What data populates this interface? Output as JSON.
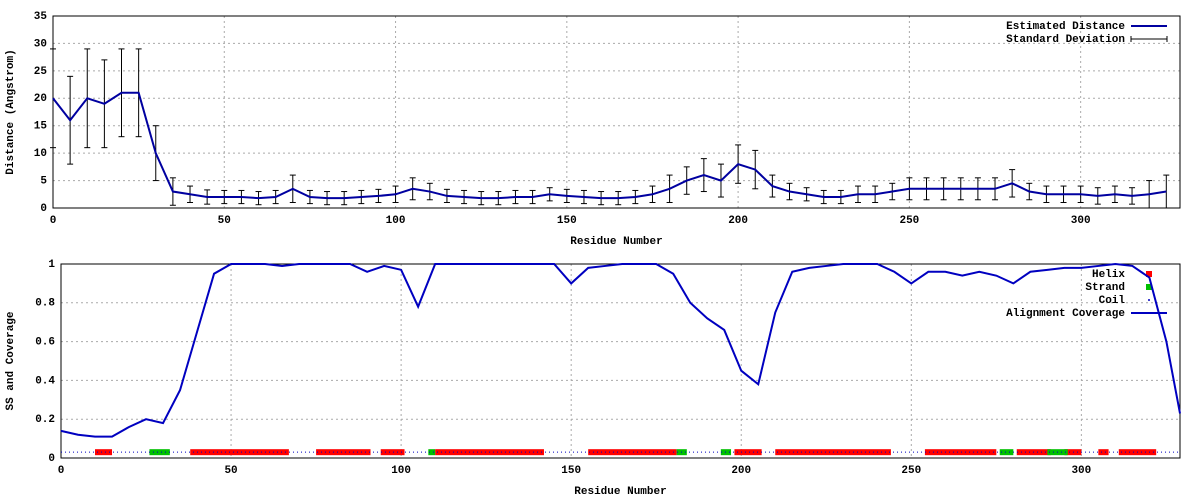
{
  "chart_data": [
    {
      "type": "line",
      "xlabel": "Residue Number",
      "ylabel": "Distance (Angstrom)",
      "xlim": [
        0,
        329
      ],
      "ylim": [
        0,
        35
      ],
      "xticks": [
        0,
        50,
        100,
        150,
        200,
        250,
        300
      ],
      "yticks": [
        0,
        5,
        10,
        15,
        20,
        25,
        30,
        35
      ],
      "grid": true,
      "legend": "top-right",
      "x": [
        0,
        5,
        10,
        15,
        20,
        25,
        30,
        35,
        40,
        45,
        50,
        55,
        60,
        65,
        70,
        75,
        80,
        85,
        90,
        95,
        100,
        105,
        110,
        115,
        120,
        125,
        130,
        135,
        140,
        145,
        150,
        155,
        160,
        165,
        170,
        175,
        180,
        185,
        190,
        195,
        200,
        205,
        210,
        215,
        220,
        225,
        230,
        235,
        240,
        245,
        250,
        255,
        260,
        265,
        270,
        275,
        280,
        285,
        290,
        295,
        300,
        305,
        310,
        315,
        320,
        325
      ],
      "series": [
        {
          "name": "Estimated Distance",
          "color": "#0000a0",
          "values": [
            20,
            16,
            20,
            19,
            21,
            21,
            10,
            3,
            2.5,
            2,
            2,
            2,
            1.8,
            2,
            3.5,
            2,
            1.8,
            1.8,
            2,
            2.2,
            2.5,
            3.5,
            3,
            2.2,
            2,
            1.8,
            1.8,
            2,
            2,
            2.5,
            2.2,
            2,
            1.8,
            1.8,
            2,
            2.5,
            3.5,
            5,
            6,
            5,
            8,
            7,
            4,
            3,
            2.5,
            2,
            2,
            2.5,
            2.5,
            3,
            3.5,
            3.5,
            3.5,
            3.5,
            3.5,
            3.5,
            4.5,
            3,
            2.5,
            2.5,
            2.5,
            2.2,
            2.5,
            2.2,
            2.5,
            3
          ]
        },
        {
          "name": "Standard Deviation",
          "color": "#000000",
          "values": [
            9,
            8,
            9,
            8,
            8,
            8,
            5,
            2.5,
            1.5,
            1.3,
            1.2,
            1.2,
            1.2,
            1.2,
            2.5,
            1.2,
            1.2,
            1.2,
            1.2,
            1.2,
            1.5,
            2,
            1.5,
            1.2,
            1.2,
            1.2,
            1.2,
            1.2,
            1.2,
            1.2,
            1.2,
            1.2,
            1.2,
            1.2,
            1.2,
            1.5,
            2.5,
            2.5,
            3,
            3,
            3.5,
            3.5,
            2,
            1.5,
            1.2,
            1.2,
            1.2,
            1.5,
            1.5,
            1.5,
            2,
            2,
            2,
            2,
            2,
            2,
            2.5,
            1.5,
            1.5,
            1.5,
            1.5,
            1.5,
            1.5,
            1.5,
            2.5,
            3
          ]
        }
      ]
    },
    {
      "type": "ss-coverage",
      "xlabel": "Residue Number",
      "ylabel": "SS and Coverage",
      "xlim": [
        0,
        329
      ],
      "ylim": [
        0,
        1
      ],
      "xticks": [
        0,
        50,
        100,
        150,
        200,
        250,
        300
      ],
      "yticks": [
        0,
        0.2,
        0.4,
        0.6,
        0.8,
        1
      ],
      "grid": true,
      "legend": "top-right",
      "ss_level": 0.03,
      "x": [
        0,
        5,
        10,
        15,
        20,
        25,
        30,
        35,
        40,
        45,
        50,
        55,
        60,
        65,
        70,
        75,
        80,
        85,
        90,
        95,
        100,
        105,
        110,
        115,
        120,
        125,
        130,
        135,
        140,
        145,
        150,
        155,
        160,
        165,
        170,
        175,
        180,
        185,
        190,
        195,
        200,
        205,
        210,
        215,
        220,
        225,
        230,
        235,
        240,
        245,
        250,
        255,
        260,
        265,
        270,
        275,
        280,
        285,
        290,
        295,
        300,
        305,
        310,
        315,
        320,
        325,
        329
      ],
      "series": [
        {
          "name": "Helix",
          "color": "#ff0000",
          "segments": [
            [
              10,
              15
            ],
            [
              38,
              67
            ],
            [
              75,
              91
            ],
            [
              94,
              101
            ],
            [
              110,
              142
            ],
            [
              155,
              181
            ],
            [
              198,
              206
            ],
            [
              210,
              244
            ],
            [
              254,
              275
            ],
            [
              281,
              291
            ],
            [
              295,
              300
            ],
            [
              305,
              308
            ],
            [
              311,
              322
            ]
          ]
        },
        {
          "name": "Strand",
          "color": "#00c000",
          "segments": [
            [
              26,
              32
            ],
            [
              108,
              110
            ],
            [
              181,
              184
            ],
            [
              194,
              197
            ],
            [
              276,
              280
            ],
            [
              290,
              296
            ]
          ]
        },
        {
          "name": "Coil",
          "color": "#0000c0",
          "segments": [
            [
              0,
              329
            ]
          ]
        },
        {
          "name": "Alignment Coverage",
          "color": "#0000c0",
          "values": [
            0.14,
            0.12,
            0.11,
            0.11,
            0.16,
            0.2,
            0.18,
            0.35,
            0.65,
            0.95,
            1,
            1,
            1,
            0.99,
            1,
            1,
            1,
            1,
            0.96,
            0.99,
            0.97,
            0.78,
            1,
            1,
            1,
            1,
            1,
            1,
            1,
            1,
            0.9,
            0.98,
            0.99,
            1,
            1,
            1,
            0.95,
            0.8,
            0.72,
            0.66,
            0.45,
            0.38,
            0.75,
            0.96,
            0.98,
            0.99,
            1,
            1,
            1,
            0.96,
            0.9,
            0.96,
            0.96,
            0.94,
            0.96,
            0.94,
            0.9,
            0.96,
            0.97,
            0.98,
            0.98,
            0.99,
            1,
            0.99,
            0.93,
            0.6,
            0.23
          ]
        }
      ]
    }
  ]
}
